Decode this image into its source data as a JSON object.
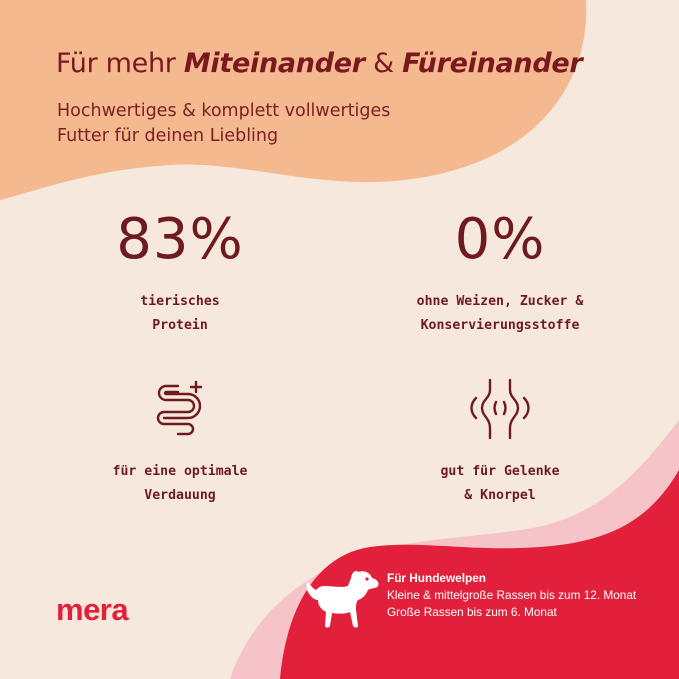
{
  "header": {
    "headline_prefix": "Für mehr ",
    "headline_em1": "Miteinander",
    "headline_amp": " & ",
    "headline_em2": "Füreinander",
    "subline_1": "Hochwertiges & komplett vollwertiges",
    "subline_2": "Futter für deinen Liebling"
  },
  "features": [
    {
      "value": "83%",
      "caption_1": "tierisches",
      "caption_2": "Protein"
    },
    {
      "value": "0%",
      "caption_1": "ohne Weizen, Zucker &",
      "caption_2": "Konservierungsstoffe"
    },
    {
      "icon": "intestine-plus-icon",
      "caption_1": "für eine optimale",
      "caption_2": "Verdauung"
    },
    {
      "icon": "joint-icon",
      "caption_1": "gut für Gelenke",
      "caption_2": "& Knorpel"
    }
  ],
  "brand": {
    "logo": "mera"
  },
  "target": {
    "title": "Für Hundewelpen",
    "line_1": "Kleine & mittelgroße Rassen bis zum 12. Monat",
    "line_2": "Große Rassen bis zum 6. Monat",
    "icon": "puppy-icon"
  },
  "colors": {
    "background": "#f6e8dc",
    "peach": "#f5b990",
    "dark_red": "#7a1f22",
    "brand_red": "#e3203b",
    "pink_wave": "#f6c3c8"
  }
}
